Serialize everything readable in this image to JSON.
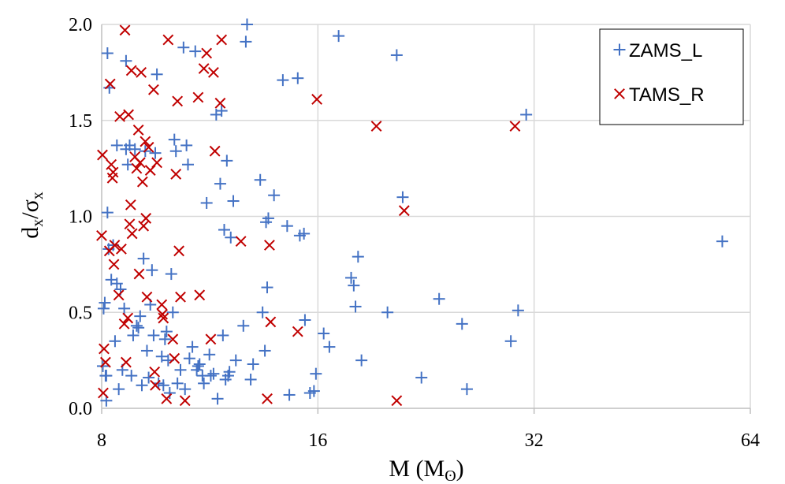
{
  "chart_data": {
    "type": "scatter",
    "x_scale": "log2",
    "xlim": [
      8,
      64
    ],
    "ylim": [
      0.0,
      2.0
    ],
    "x_ticks": [
      8,
      16,
      32,
      64
    ],
    "x_tick_labels": [
      "8",
      "16",
      "32",
      "64"
    ],
    "y_ticks": [
      0.0,
      0.5,
      1.0,
      1.5,
      2.0
    ],
    "y_tick_labels": [
      "0.0",
      "0.5",
      "1.0",
      "1.5",
      "2.0"
    ],
    "grid": true,
    "xlabel": {
      "main": "M (M",
      "sub": "ʘ",
      "close": ")"
    },
    "ylabel": {
      "d": "d",
      "x1": "x",
      "slash": "/σ",
      "x2": "x"
    },
    "legend_position": "top-right",
    "series": [
      {
        "name": "ZAMS_L",
        "marker": "plus",
        "color": "#4472C4",
        "points": [
          [
            8.03,
            0.22
          ],
          [
            8.05,
            0.52
          ],
          [
            8.08,
            0.55
          ],
          [
            8.1,
            0.17
          ],
          [
            8.12,
            0.17
          ],
          [
            8.12,
            0.04
          ],
          [
            8.15,
            1.02
          ],
          [
            8.15,
            1.85
          ],
          [
            8.18,
            0.83
          ],
          [
            8.2,
            1.67
          ],
          [
            8.25,
            0.67
          ],
          [
            8.3,
            0.85
          ],
          [
            8.35,
            0.35
          ],
          [
            8.4,
            0.65
          ],
          [
            8.4,
            1.37
          ],
          [
            8.45,
            0.1
          ],
          [
            8.5,
            0.62
          ],
          [
            8.55,
            0.2
          ],
          [
            8.6,
            0.52
          ],
          [
            8.65,
            1.35
          ],
          [
            8.65,
            1.81
          ],
          [
            8.7,
            1.27
          ],
          [
            8.75,
            1.37
          ],
          [
            8.8,
            0.17
          ],
          [
            8.85,
            0.38
          ],
          [
            8.9,
            1.35
          ],
          [
            8.95,
            0.43
          ],
          [
            9.0,
            0.42
          ],
          [
            9.05,
            0.48
          ],
          [
            9.1,
            0.12
          ],
          [
            9.15,
            0.78
          ],
          [
            9.2,
            1.34
          ],
          [
            9.25,
            0.3
          ],
          [
            9.3,
            0.16
          ],
          [
            9.35,
            0.54
          ],
          [
            9.4,
            0.72
          ],
          [
            9.45,
            0.38
          ],
          [
            9.5,
            1.33
          ],
          [
            9.55,
            1.74
          ],
          [
            9.6,
            0.13
          ],
          [
            9.7,
            0.27
          ],
          [
            9.75,
            0.12
          ],
          [
            9.8,
            0.36
          ],
          [
            9.85,
            0.4
          ],
          [
            9.9,
            0.25
          ],
          [
            9.95,
            0.08
          ],
          [
            10.0,
            0.7
          ],
          [
            10.05,
            0.5
          ],
          [
            10.1,
            1.4
          ],
          [
            10.15,
            1.34
          ],
          [
            10.2,
            0.13
          ],
          [
            10.3,
            0.2
          ],
          [
            10.4,
            1.88
          ],
          [
            10.45,
            0.1
          ],
          [
            10.5,
            1.37
          ],
          [
            10.55,
            1.27
          ],
          [
            10.6,
            0.26
          ],
          [
            10.7,
            0.32
          ],
          [
            10.8,
            1.86
          ],
          [
            10.85,
            0.2
          ],
          [
            10.9,
            0.22
          ],
          [
            10.95,
            0.23
          ],
          [
            11.05,
            0.17
          ],
          [
            11.1,
            0.13
          ],
          [
            11.2,
            1.07
          ],
          [
            11.3,
            0.28
          ],
          [
            11.35,
            0.17
          ],
          [
            11.45,
            0.18
          ],
          [
            11.55,
            1.53
          ],
          [
            11.6,
            0.05
          ],
          [
            11.7,
            1.17
          ],
          [
            11.75,
            1.55
          ],
          [
            11.8,
            0.38
          ],
          [
            11.85,
            0.93
          ],
          [
            11.9,
            0.15
          ],
          [
            11.95,
            1.29
          ],
          [
            12.0,
            0.17
          ],
          [
            12.05,
            0.19
          ],
          [
            12.1,
            0.89
          ],
          [
            12.2,
            1.08
          ],
          [
            12.3,
            0.25
          ],
          [
            12.6,
            0.43
          ],
          [
            12.7,
            1.91
          ],
          [
            12.75,
            2.0
          ],
          [
            12.9,
            0.15
          ],
          [
            13.0,
            0.23
          ],
          [
            13.3,
            1.19
          ],
          [
            13.4,
            0.5
          ],
          [
            13.5,
            0.3
          ],
          [
            13.55,
            0.97
          ],
          [
            13.6,
            0.63
          ],
          [
            13.65,
            0.99
          ],
          [
            13.9,
            1.11
          ],
          [
            14.3,
            1.71
          ],
          [
            14.5,
            0.95
          ],
          [
            14.6,
            0.07
          ],
          [
            15.0,
            1.72
          ],
          [
            15.1,
            0.9
          ],
          [
            15.3,
            0.91
          ],
          [
            15.35,
            0.46
          ],
          [
            15.6,
            0.08
          ],
          [
            15.8,
            0.09
          ],
          [
            15.9,
            0.18
          ],
          [
            16.3,
            0.39
          ],
          [
            16.6,
            0.32
          ],
          [
            17.1,
            1.94
          ],
          [
            17.8,
            0.68
          ],
          [
            17.95,
            0.64
          ],
          [
            18.05,
            0.53
          ],
          [
            18.2,
            0.79
          ],
          [
            18.4,
            0.25
          ],
          [
            20.0,
            0.5
          ],
          [
            20.6,
            1.84
          ],
          [
            21.0,
            1.1
          ],
          [
            22.3,
            0.16
          ],
          [
            23.6,
            0.57
          ],
          [
            25.4,
            0.44
          ],
          [
            25.8,
            0.1
          ],
          [
            29.7,
            0.35
          ],
          [
            30.4,
            0.51
          ],
          [
            31.2,
            1.53
          ],
          [
            58.5,
            0.87
          ]
        ]
      },
      {
        "name": "TAMS_R",
        "marker": "x",
        "color": "#C00000",
        "points": [
          [
            8.0,
            0.9
          ],
          [
            8.02,
            1.32
          ],
          [
            8.04,
            0.08
          ],
          [
            8.06,
            0.31
          ],
          [
            8.1,
            0.24
          ],
          [
            8.2,
            0.82
          ],
          [
            8.22,
            1.69
          ],
          [
            8.25,
            1.27
          ],
          [
            8.28,
            1.2
          ],
          [
            8.3,
            1.23
          ],
          [
            8.32,
            0.75
          ],
          [
            8.34,
            0.85
          ],
          [
            8.45,
            0.59
          ],
          [
            8.48,
            1.52
          ],
          [
            8.52,
            0.83
          ],
          [
            8.6,
            0.44
          ],
          [
            8.62,
            1.97
          ],
          [
            8.65,
            0.24
          ],
          [
            8.7,
            0.47
          ],
          [
            8.72,
            1.53
          ],
          [
            8.75,
            0.96
          ],
          [
            8.78,
            1.06
          ],
          [
            8.8,
            1.76
          ],
          [
            8.82,
            0.91
          ],
          [
            8.9,
            1.31
          ],
          [
            8.95,
            1.25
          ],
          [
            9.0,
            1.45
          ],
          [
            9.02,
            0.7
          ],
          [
            9.05,
            1.28
          ],
          [
            9.08,
            1.75
          ],
          [
            9.12,
            1.18
          ],
          [
            9.15,
            0.95
          ],
          [
            9.2,
            1.39
          ],
          [
            9.22,
            0.99
          ],
          [
            9.25,
            0.58
          ],
          [
            9.3,
            1.36
          ],
          [
            9.35,
            1.24
          ],
          [
            9.45,
            1.66
          ],
          [
            9.48,
            0.19
          ],
          [
            9.5,
            0.12
          ],
          [
            9.55,
            1.28
          ],
          [
            9.7,
            0.54
          ],
          [
            9.72,
            0.49
          ],
          [
            9.75,
            0.47
          ],
          [
            9.85,
            0.05
          ],
          [
            9.9,
            1.92
          ],
          [
            10.05,
            0.36
          ],
          [
            10.1,
            0.26
          ],
          [
            10.15,
            1.22
          ],
          [
            10.2,
            1.6
          ],
          [
            10.25,
            0.82
          ],
          [
            10.3,
            0.58
          ],
          [
            10.45,
            0.04
          ],
          [
            10.9,
            1.62
          ],
          [
            10.95,
            0.59
          ],
          [
            11.1,
            1.77
          ],
          [
            11.2,
            1.85
          ],
          [
            11.35,
            0.36
          ],
          [
            11.45,
            1.75
          ],
          [
            11.5,
            1.34
          ],
          [
            11.7,
            1.59
          ],
          [
            11.75,
            1.92
          ],
          [
            12.5,
            0.87
          ],
          [
            13.6,
            0.05
          ],
          [
            13.7,
            0.85
          ],
          [
            13.75,
            0.45
          ],
          [
            15.0,
            0.4
          ],
          [
            15.95,
            1.61
          ],
          [
            19.3,
            1.47
          ],
          [
            20.6,
            0.04
          ],
          [
            21.1,
            1.03
          ],
          [
            30.1,
            1.47
          ]
        ]
      }
    ]
  }
}
